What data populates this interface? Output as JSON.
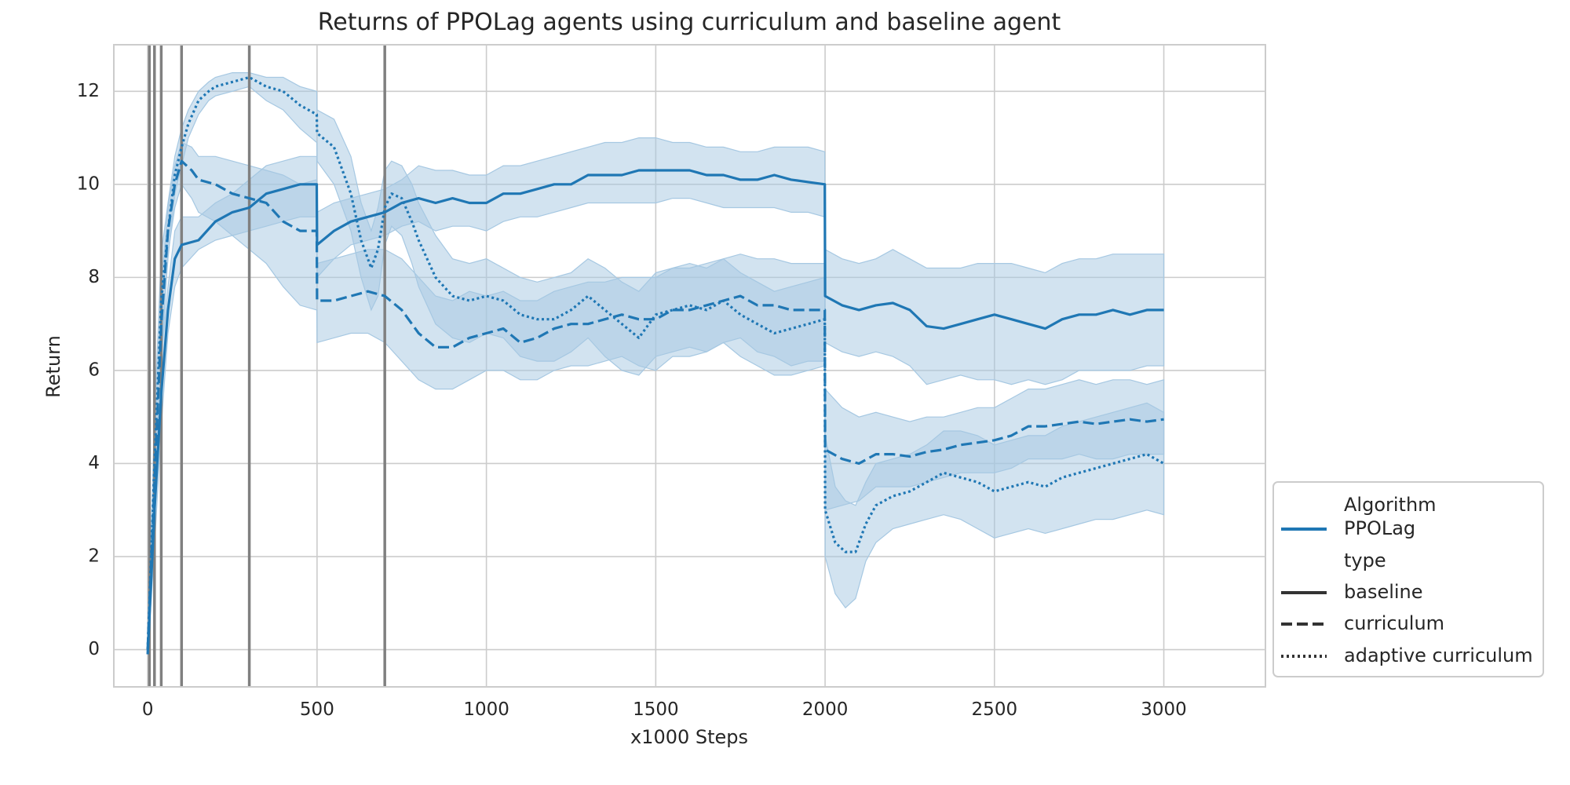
{
  "chart_data": {
    "type": "line",
    "title": "Returns of PPOLag agents using curriculum and baseline agent",
    "xlabel": "x1000 Steps",
    "ylabel": "Return",
    "xlim": [
      -100,
      3300
    ],
    "ylim": [
      -0.8,
      13.0
    ],
    "x_ticks": [
      0,
      500,
      1000,
      1500,
      2000,
      2500,
      3000
    ],
    "y_ticks": [
      0,
      2,
      4,
      6,
      8,
      10,
      12
    ],
    "grid": true,
    "legend_position": "lower-right outside",
    "color": "#1f77b4",
    "band_color": "#a6c8e2",
    "vline_color": "#808080",
    "vlines": [
      5,
      20,
      40,
      100,
      300,
      700
    ],
    "legend": {
      "header_algorithm": "Algorithm",
      "algorithm": "PPOLag",
      "header_type": "type",
      "types": [
        "baseline",
        "curriculum",
        "adaptive curriculum"
      ]
    },
    "series": [
      {
        "name": "baseline",
        "dash": "solid",
        "x": [
          0,
          20,
          40,
          60,
          80,
          100,
          150,
          200,
          250,
          300,
          350,
          400,
          450,
          499,
          500,
          550,
          600,
          650,
          700,
          750,
          800,
          850,
          900,
          950,
          1000,
          1050,
          1100,
          1150,
          1200,
          1250,
          1300,
          1350,
          1400,
          1450,
          1500,
          1550,
          1600,
          1650,
          1700,
          1750,
          1800,
          1850,
          1900,
          1950,
          1999,
          2000,
          2050,
          2100,
          2150,
          2200,
          2250,
          2300,
          2350,
          2400,
          2450,
          2500,
          2550,
          2600,
          2650,
          2700,
          2750,
          2800,
          2850,
          2900,
          2950,
          3000
        ],
        "y": [
          -0.1,
          3.0,
          5.5,
          7.3,
          8.4,
          8.7,
          8.8,
          9.2,
          9.4,
          9.5,
          9.8,
          9.9,
          10.0,
          10.0,
          8.7,
          9.0,
          9.2,
          9.3,
          9.4,
          9.6,
          9.7,
          9.6,
          9.7,
          9.6,
          9.6,
          9.8,
          9.8,
          9.9,
          10.0,
          10.0,
          10.2,
          10.2,
          10.2,
          10.3,
          10.3,
          10.3,
          10.3,
          10.2,
          10.2,
          10.1,
          10.1,
          10.2,
          10.1,
          10.05,
          10.0,
          7.6,
          7.4,
          7.3,
          7.4,
          7.45,
          7.3,
          6.95,
          6.9,
          7.0,
          7.1,
          7.2,
          7.1,
          7.0,
          6.9,
          7.1,
          7.2,
          7.2,
          7.3,
          7.2,
          7.3,
          7.3
        ],
        "band_lower": [
          -0.1,
          2.2,
          4.8,
          6.8,
          7.8,
          8.2,
          8.6,
          8.8,
          8.9,
          9.0,
          9.1,
          9.2,
          9.3,
          9.3,
          8.0,
          8.4,
          8.7,
          8.8,
          8.9,
          9.1,
          9.2,
          9.0,
          9.1,
          9.1,
          9.0,
          9.2,
          9.3,
          9.3,
          9.4,
          9.5,
          9.6,
          9.6,
          9.6,
          9.6,
          9.6,
          9.7,
          9.7,
          9.6,
          9.5,
          9.5,
          9.5,
          9.5,
          9.4,
          9.4,
          9.3,
          6.6,
          6.4,
          6.3,
          6.4,
          6.3,
          6.1,
          5.7,
          5.8,
          5.9,
          5.8,
          5.8,
          5.7,
          5.8,
          5.7,
          5.8,
          6.0,
          6.0,
          6.0,
          6.0,
          6.1,
          6.1
        ],
        "band_upper": [
          0.0,
          3.8,
          6.3,
          7.8,
          9.0,
          9.3,
          9.3,
          9.6,
          9.8,
          10.1,
          10.4,
          10.5,
          10.6,
          10.6,
          9.4,
          9.6,
          9.7,
          9.8,
          9.9,
          10.1,
          10.4,
          10.3,
          10.3,
          10.2,
          10.2,
          10.4,
          10.4,
          10.5,
          10.6,
          10.7,
          10.8,
          10.9,
          10.9,
          11.0,
          11.0,
          10.9,
          10.9,
          10.8,
          10.8,
          10.7,
          10.7,
          10.8,
          10.8,
          10.8,
          10.7,
          8.6,
          8.4,
          8.3,
          8.4,
          8.6,
          8.4,
          8.2,
          8.2,
          8.2,
          8.3,
          8.3,
          8.3,
          8.2,
          8.1,
          8.3,
          8.4,
          8.4,
          8.5,
          8.5,
          8.5,
          8.5
        ]
      },
      {
        "name": "curriculum",
        "dash": "dashed",
        "x": [
          0,
          20,
          40,
          60,
          80,
          100,
          130,
          150,
          200,
          250,
          300,
          350,
          400,
          450,
          499,
          500,
          550,
          600,
          650,
          700,
          750,
          800,
          850,
          900,
          950,
          1000,
          1050,
          1100,
          1150,
          1200,
          1250,
          1300,
          1350,
          1400,
          1450,
          1500,
          1550,
          1600,
          1650,
          1700,
          1750,
          1800,
          1850,
          1900,
          1950,
          1999,
          2000,
          2050,
          2100,
          2150,
          2200,
          2250,
          2300,
          2350,
          2400,
          2450,
          2500,
          2550,
          2600,
          2650,
          2700,
          2750,
          2800,
          2850,
          2900,
          2950,
          3000
        ],
        "y": [
          0.0,
          3.5,
          7.0,
          9.0,
          10.0,
          10.5,
          10.3,
          10.1,
          10.0,
          9.8,
          9.7,
          9.6,
          9.2,
          9.0,
          9.0,
          7.5,
          7.5,
          7.6,
          7.7,
          7.6,
          7.3,
          6.8,
          6.5,
          6.5,
          6.7,
          6.8,
          6.9,
          6.6,
          6.7,
          6.9,
          7.0,
          7.0,
          7.1,
          7.2,
          7.1,
          7.1,
          7.3,
          7.3,
          7.4,
          7.5,
          7.6,
          7.4,
          7.4,
          7.3,
          7.3,
          7.3,
          4.3,
          4.1,
          4.0,
          4.2,
          4.2,
          4.15,
          4.25,
          4.3,
          4.4,
          4.45,
          4.5,
          4.6,
          4.8,
          4.8,
          4.85,
          4.9,
          4.85,
          4.9,
          4.95,
          4.9,
          4.95
        ],
        "band_lower": [
          0.0,
          2.6,
          6.2,
          8.5,
          9.5,
          10.0,
          9.7,
          9.4,
          9.2,
          8.9,
          8.6,
          8.3,
          7.8,
          7.4,
          7.3,
          6.6,
          6.7,
          6.8,
          6.8,
          6.6,
          6.2,
          5.8,
          5.6,
          5.6,
          5.8,
          6.0,
          6.0,
          5.8,
          5.8,
          6.0,
          6.1,
          6.1,
          6.2,
          6.3,
          6.1,
          6.0,
          6.3,
          6.3,
          6.4,
          6.6,
          6.7,
          6.4,
          6.3,
          6.1,
          6.2,
          6.2,
          3.0,
          3.1,
          3.2,
          3.5,
          3.5,
          3.5,
          3.6,
          3.7,
          3.8,
          3.8,
          3.8,
          3.9,
          4.1,
          4.1,
          4.1,
          4.2,
          4.1,
          4.1,
          4.2,
          4.2,
          4.2
        ],
        "band_upper": [
          0.0,
          4.4,
          7.8,
          9.5,
          10.4,
          10.9,
          10.8,
          10.6,
          10.6,
          10.5,
          10.4,
          10.3,
          10.2,
          10.0,
          10.1,
          8.3,
          8.4,
          8.5,
          8.6,
          8.6,
          8.4,
          8.0,
          7.6,
          7.5,
          7.7,
          7.6,
          7.7,
          7.5,
          7.5,
          7.7,
          7.8,
          7.9,
          7.9,
          8.0,
          8.0,
          8.0,
          8.2,
          8.2,
          8.3,
          8.4,
          8.5,
          8.4,
          8.4,
          8.3,
          8.3,
          8.3,
          5.6,
          5.2,
          5.0,
          5.1,
          5.0,
          4.9,
          5.0,
          5.0,
          5.1,
          5.2,
          5.2,
          5.4,
          5.6,
          5.6,
          5.7,
          5.8,
          5.7,
          5.8,
          5.8,
          5.7,
          5.8
        ]
      },
      {
        "name": "adaptive curriculum",
        "dash": "dotted",
        "x": [
          0,
          20,
          40,
          60,
          80,
          100,
          120,
          150,
          180,
          200,
          250,
          300,
          350,
          400,
          450,
          499,
          500,
          550,
          600,
          630,
          660,
          680,
          700,
          720,
          750,
          780,
          800,
          850,
          900,
          950,
          1000,
          1050,
          1100,
          1150,
          1200,
          1250,
          1300,
          1350,
          1400,
          1450,
          1500,
          1550,
          1600,
          1650,
          1700,
          1750,
          1800,
          1850,
          1900,
          1950,
          1999,
          2000,
          2030,
          2060,
          2090,
          2120,
          2150,
          2200,
          2250,
          2300,
          2350,
          2400,
          2450,
          2500,
          2550,
          2600,
          2650,
          2700,
          2750,
          2800,
          2850,
          2900,
          2950,
          3000
        ],
        "y": [
          0.0,
          4.0,
          7.5,
          9.0,
          10.2,
          10.8,
          11.3,
          11.8,
          12.0,
          12.1,
          12.2,
          12.3,
          12.1,
          12.0,
          11.7,
          11.5,
          11.1,
          10.8,
          9.8,
          8.8,
          8.2,
          8.6,
          9.5,
          9.8,
          9.7,
          9.2,
          8.8,
          8.0,
          7.6,
          7.5,
          7.6,
          7.5,
          7.2,
          7.1,
          7.1,
          7.3,
          7.6,
          7.3,
          7.0,
          6.7,
          7.2,
          7.3,
          7.4,
          7.3,
          7.5,
          7.2,
          7.0,
          6.8,
          6.9,
          7.0,
          7.1,
          3.0,
          2.3,
          2.1,
          2.1,
          2.7,
          3.1,
          3.3,
          3.4,
          3.6,
          3.8,
          3.7,
          3.6,
          3.4,
          3.5,
          3.6,
          3.5,
          3.7,
          3.8,
          3.9,
          4.0,
          4.1,
          4.2,
          4.0
        ],
        "band_lower": [
          0.0,
          3.0,
          6.5,
          8.4,
          9.8,
          10.4,
          11.0,
          11.5,
          11.8,
          11.9,
          12.0,
          12.1,
          11.8,
          11.6,
          11.2,
          10.9,
          10.5,
          10.0,
          9.0,
          8.0,
          7.3,
          7.6,
          8.7,
          9.1,
          8.9,
          8.3,
          7.8,
          7.0,
          6.7,
          6.6,
          6.8,
          6.7,
          6.3,
          6.2,
          6.2,
          6.4,
          6.7,
          6.3,
          6.0,
          5.9,
          6.3,
          6.4,
          6.5,
          6.4,
          6.6,
          6.3,
          6.1,
          5.9,
          5.9,
          6.0,
          6.1,
          2.0,
          1.2,
          0.9,
          1.1,
          1.9,
          2.3,
          2.6,
          2.7,
          2.8,
          2.9,
          2.8,
          2.6,
          2.4,
          2.5,
          2.6,
          2.5,
          2.6,
          2.7,
          2.8,
          2.8,
          2.9,
          3.0,
          2.9
        ],
        "band_upper": [
          0.0,
          5.0,
          8.5,
          9.6,
          10.6,
          11.2,
          11.6,
          12.0,
          12.2,
          12.3,
          12.4,
          12.4,
          12.3,
          12.3,
          12.1,
          12.0,
          11.6,
          11.4,
          10.6,
          9.6,
          9.0,
          9.5,
          10.3,
          10.5,
          10.4,
          10.0,
          9.6,
          8.9,
          8.4,
          8.3,
          8.4,
          8.2,
          8.0,
          7.9,
          8.0,
          8.1,
          8.4,
          8.2,
          7.9,
          7.7,
          8.1,
          8.2,
          8.3,
          8.2,
          8.4,
          8.1,
          7.9,
          7.7,
          7.8,
          7.9,
          8.0,
          4.6,
          3.5,
          3.2,
          3.1,
          3.6,
          4.0,
          4.1,
          4.2,
          4.4,
          4.7,
          4.7,
          4.6,
          4.4,
          4.5,
          4.6,
          4.6,
          4.8,
          4.9,
          5.0,
          5.1,
          5.2,
          5.3,
          5.1
        ]
      }
    ]
  }
}
